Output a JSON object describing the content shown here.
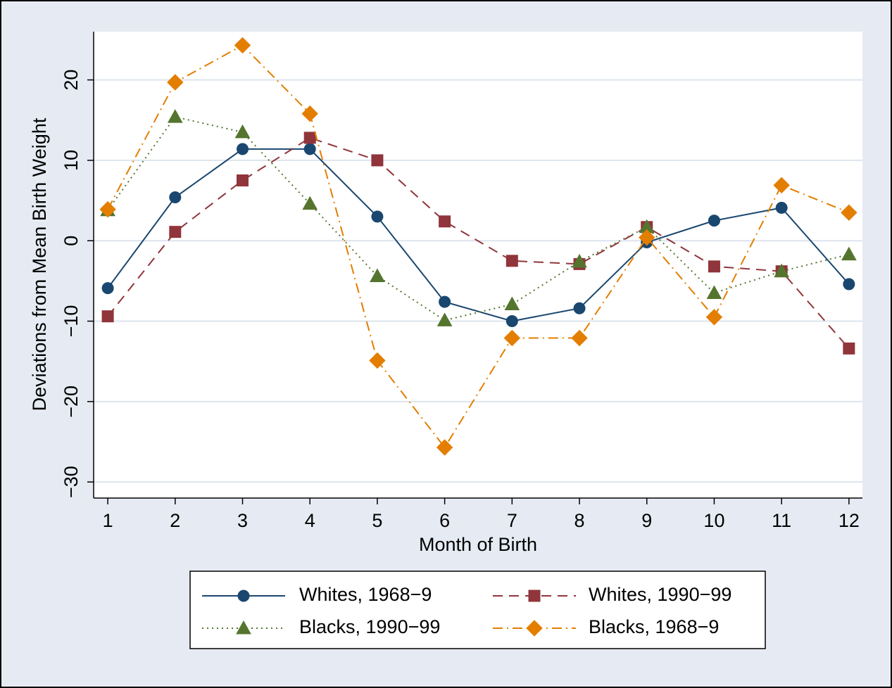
{
  "chart_data": {
    "type": "line",
    "x_label": "Month of Birth",
    "y_label": "Deviations from Mean Birth Weight",
    "x": [
      1,
      2,
      3,
      4,
      5,
      6,
      7,
      8,
      9,
      10,
      11,
      12
    ],
    "xlim": [
      0.79,
      12.2
    ],
    "xticks": [
      1,
      2,
      3,
      4,
      5,
      6,
      7,
      8,
      9,
      10,
      11,
      12
    ],
    "ylim": [
      -32,
      26
    ],
    "yticks": [
      {
        "value": -30,
        "label": "−30"
      },
      {
        "value": -20,
        "label": "−20"
      },
      {
        "value": -10,
        "label": "−10"
      },
      0,
      10,
      20
    ],
    "grid": true,
    "legend": "bottom",
    "series": [
      {
        "name": "Whites, 1968−9",
        "color": "#1a476f",
        "dash": "solid",
        "marker": "circle",
        "values": [
          -5.9,
          5.4,
          11.4,
          11.4,
          3.0,
          -7.6,
          -10.0,
          -8.4,
          -0.2,
          2.5,
          4.1,
          -5.4
        ]
      },
      {
        "name": "Whites, 1990−99",
        "color": "#90353b",
        "dash": "dashed",
        "marker": "square",
        "values": [
          -9.4,
          1.1,
          7.5,
          12.8,
          10.0,
          2.4,
          -2.5,
          -2.9,
          1.7,
          -3.2,
          -3.8,
          -13.4
        ]
      },
      {
        "name": "Blacks, 1990−99",
        "color": "#55752f",
        "dash": "dotted",
        "marker": "triangle",
        "values": [
          3.8,
          15.4,
          13.5,
          4.6,
          -4.4,
          -9.9,
          -7.9,
          -2.6,
          1.7,
          -6.5,
          -3.8,
          -1.7
        ]
      },
      {
        "name": "Blacks, 1968−9",
        "color": "#e37e00",
        "dash": "dashdot",
        "marker": "diamond",
        "values": [
          3.9,
          19.7,
          24.3,
          15.8,
          -14.9,
          -25.7,
          -12.1,
          -12.1,
          0.4,
          -9.5,
          6.9,
          3.5
        ]
      }
    ]
  }
}
